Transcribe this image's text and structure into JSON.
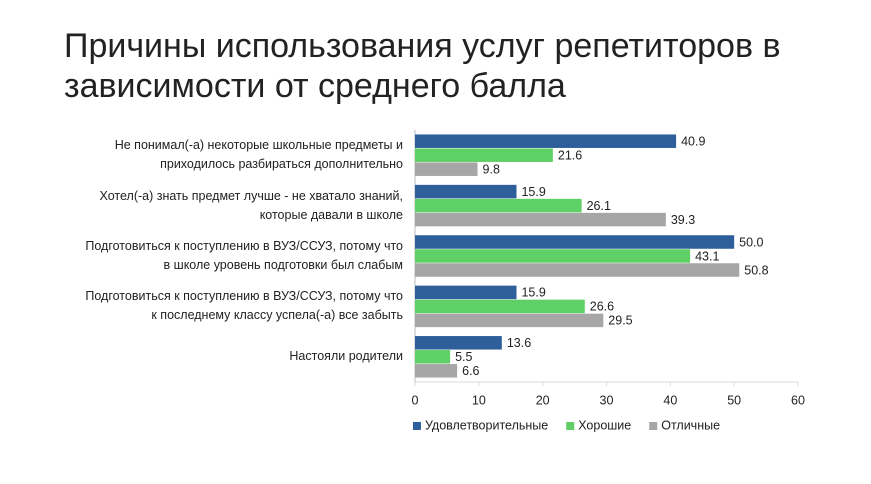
{
  "chart_data": {
    "type": "bar",
    "orientation": "horizontal",
    "title": "Причины использования услуг репетиторов в зависимости от среднего балла",
    "categories": [
      "Не понимал(-а) некоторые школьные предметы и\nприходилось разбираться дополнительно",
      "Хотел(-а) знать предмет лучше - не хватало знаний,\nкоторые давали в школе",
      "Подготовиться к поступлению в ВУЗ/ССУЗ, потому что\nв школе уровень подготовки был слабым",
      "Подготовиться к поступлению в ВУЗ/ССУЗ, потому что\nк последнему классу успела(-а) все забыть",
      "Настояли родители"
    ],
    "series": [
      {
        "name": "Удовлетворительные",
        "color": "#2e5f9a",
        "values": [
          40.9,
          15.9,
          50.0,
          15.9,
          13.6
        ],
        "value_labels": [
          "40.9",
          "15.9",
          "50.0",
          "15.9",
          "13.6"
        ]
      },
      {
        "name": "Хорошие",
        "color": "#5fd065",
        "values": [
          21.6,
          26.1,
          43.1,
          26.6,
          5.5
        ],
        "value_labels": [
          "21.6",
          "26.1",
          "43.1",
          "26.6",
          "5.5"
        ]
      },
      {
        "name": "Отличные",
        "color": "#a6a6a6",
        "values": [
          9.8,
          39.3,
          50.8,
          29.5,
          6.6
        ],
        "value_labels": [
          "9.8",
          "39.3",
          "50.8",
          "29.5",
          "6.6"
        ]
      }
    ],
    "xlim": [
      0,
      60
    ],
    "xticks": [
      0,
      10,
      20,
      30,
      40,
      50,
      60
    ],
    "legend": "bottom"
  }
}
